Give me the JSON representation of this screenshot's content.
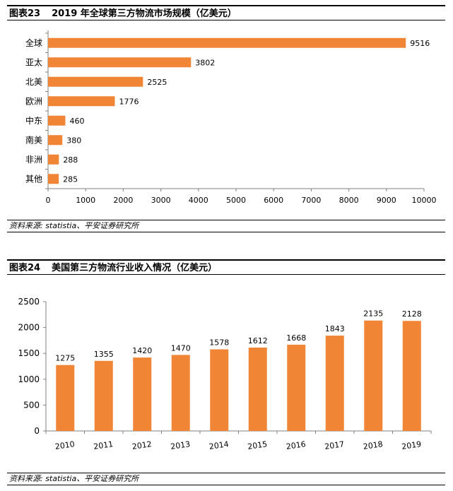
{
  "figures": [
    {
      "number": "图表23",
      "title": "2019 年全球第三方物流市场规模（亿美元）",
      "source": "资料来源: statistia、平安证券研究所"
    },
    {
      "number": "图表24",
      "title": "美国第三方物流行业收入情况（亿美元）",
      "source": "资料来源: statistia、平安证券研究所"
    }
  ],
  "colors": {
    "bar": "#F08536",
    "axis": "#808080"
  },
  "chart_data": [
    {
      "type": "bar",
      "orientation": "horizontal",
      "title": "2019 年全球第三方物流市场规模（亿美元）",
      "categories": [
        "全球",
        "亚太",
        "北美",
        "欧洲",
        "中东",
        "南美",
        "非洲",
        "其他"
      ],
      "values": [
        9516,
        3802,
        2525,
        1776,
        460,
        380,
        288,
        285
      ],
      "xlim": [
        0,
        10000
      ],
      "ticks": [
        0,
        1000,
        2000,
        3000,
        4000,
        5000,
        6000,
        7000,
        8000,
        9000,
        10000
      ],
      "grid": false,
      "legend": "none"
    },
    {
      "type": "bar",
      "orientation": "vertical",
      "title": "美国第三方物流行业收入情况（亿美元）",
      "categories": [
        "2010",
        "2011",
        "2012",
        "2013",
        "2014",
        "2015",
        "2016",
        "2017",
        "2018",
        "2019"
      ],
      "values": [
        1275,
        1355,
        1420,
        1470,
        1578,
        1612,
        1668,
        1843,
        2135,
        2128
      ],
      "ylim": [
        0,
        2500
      ],
      "ticks": [
        0,
        500,
        1000,
        1500,
        2000,
        2500
      ],
      "grid": false,
      "legend": "none"
    }
  ]
}
